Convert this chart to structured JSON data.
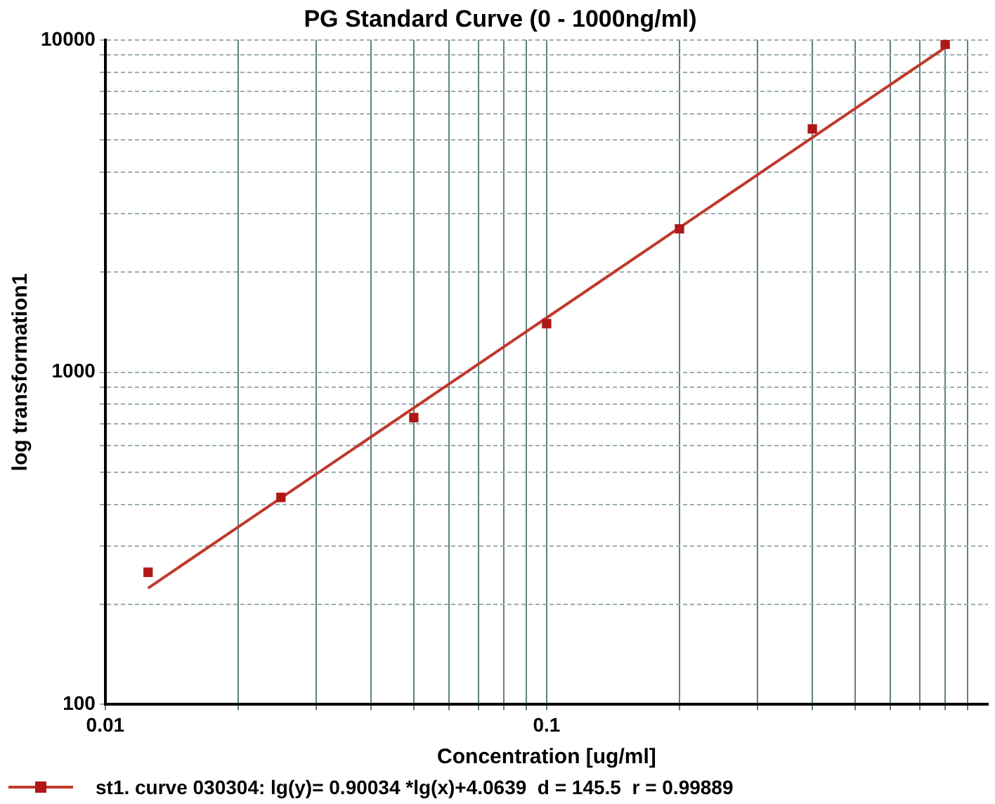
{
  "chart_data": {
    "type": "scatter",
    "title": "PG Standard Curve (0 - 1000ng/ml)",
    "xlabel": "Concentration [ug/ml]",
    "ylabel": "log transformation1",
    "log": "xy",
    "grid": true,
    "legend": "bottom",
    "xlim": [
      0.01,
      1
    ],
    "ylim": [
      100,
      10000
    ],
    "xticks": [
      0.01,
      {
        "value": 0.02,
        "label": null
      },
      {
        "value": 0.03,
        "label": null
      },
      {
        "value": 0.04,
        "label": null
      },
      {
        "value": 0.05,
        "label": null
      },
      {
        "value": 0.06,
        "label": null
      },
      {
        "value": 0.07,
        "label": null
      },
      {
        "value": 0.08,
        "label": null
      },
      {
        "value": 0.09,
        "label": null
      },
      0.1,
      {
        "value": 0.2,
        "label": null
      },
      {
        "value": 0.3,
        "label": null
      },
      {
        "value": 0.4,
        "label": null
      },
      {
        "value": 0.5,
        "label": null
      },
      {
        "value": 0.6,
        "label": null
      },
      {
        "value": 0.7,
        "label": null
      },
      {
        "value": 0.8,
        "label": null
      },
      {
        "value": 0.9,
        "label": null
      }
    ],
    "yticks": [
      100,
      {
        "value": 200,
        "label": null
      },
      {
        "value": 300,
        "label": null
      },
      {
        "value": 400,
        "label": null
      },
      {
        "value": 500,
        "label": null
      },
      {
        "value": 600,
        "label": null
      },
      {
        "value": 700,
        "label": null
      },
      {
        "value": 800,
        "label": null
      },
      {
        "value": 900,
        "label": null
      },
      1000,
      {
        "value": 2000,
        "label": null
      },
      {
        "value": 3000,
        "label": null
      },
      {
        "value": 4000,
        "label": null
      },
      {
        "value": 5000,
        "label": null
      },
      {
        "value": 6000,
        "label": null
      },
      {
        "value": 7000,
        "label": null
      },
      {
        "value": 8000,
        "label": null
      },
      {
        "value": 9000,
        "label": null
      },
      10000
    ],
    "series": [
      {
        "name": "st1. curve 030304: lg(y)= 0.90034 *lg(x)+4.0639  d = 145.5  r = 0.99889",
        "marker": "square",
        "color": "#b01818",
        "x": [
          0.0125,
          0.025,
          0.05,
          0.1,
          0.2,
          0.4,
          0.8
        ],
        "values": [
          250,
          420,
          730,
          1400,
          2700,
          5400,
          9700
        ]
      },
      {
        "type": "line",
        "marker": "none",
        "line_style": "solid",
        "color": "#c0392b",
        "x": [
          0.0125,
          0.8
        ],
        "values": [
          224,
          9490
        ]
      }
    ]
  }
}
